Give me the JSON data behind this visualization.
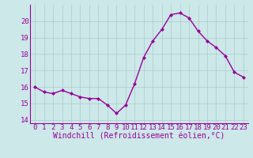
{
  "x": [
    0,
    1,
    2,
    3,
    4,
    5,
    6,
    7,
    8,
    9,
    10,
    11,
    12,
    13,
    14,
    15,
    16,
    17,
    18,
    19,
    20,
    21,
    22,
    23
  ],
  "y": [
    16.0,
    15.7,
    15.6,
    15.8,
    15.6,
    15.4,
    15.3,
    15.3,
    14.9,
    14.4,
    14.9,
    16.2,
    17.8,
    18.8,
    19.5,
    20.4,
    20.5,
    20.2,
    19.4,
    18.8,
    18.4,
    17.9,
    16.9,
    16.6
  ],
  "line_color": "#990099",
  "marker": "D",
  "marker_size": 2,
  "bg_color": "#cce8e8",
  "grid_color": "#aacccc",
  "tick_color": "#990099",
  "label_color": "#990099",
  "xlabel": "Windchill (Refroidissement éolien,°C)",
  "ylim": [
    13.8,
    21.0
  ],
  "xlim": [
    -0.5,
    23.5
  ],
  "yticks": [
    14,
    15,
    16,
    17,
    18,
    19,
    20
  ],
  "xticks": [
    0,
    1,
    2,
    3,
    4,
    5,
    6,
    7,
    8,
    9,
    10,
    11,
    12,
    13,
    14,
    15,
    16,
    17,
    18,
    19,
    20,
    21,
    22,
    23
  ],
  "font_size": 6.5,
  "xlabel_fontsize": 7
}
